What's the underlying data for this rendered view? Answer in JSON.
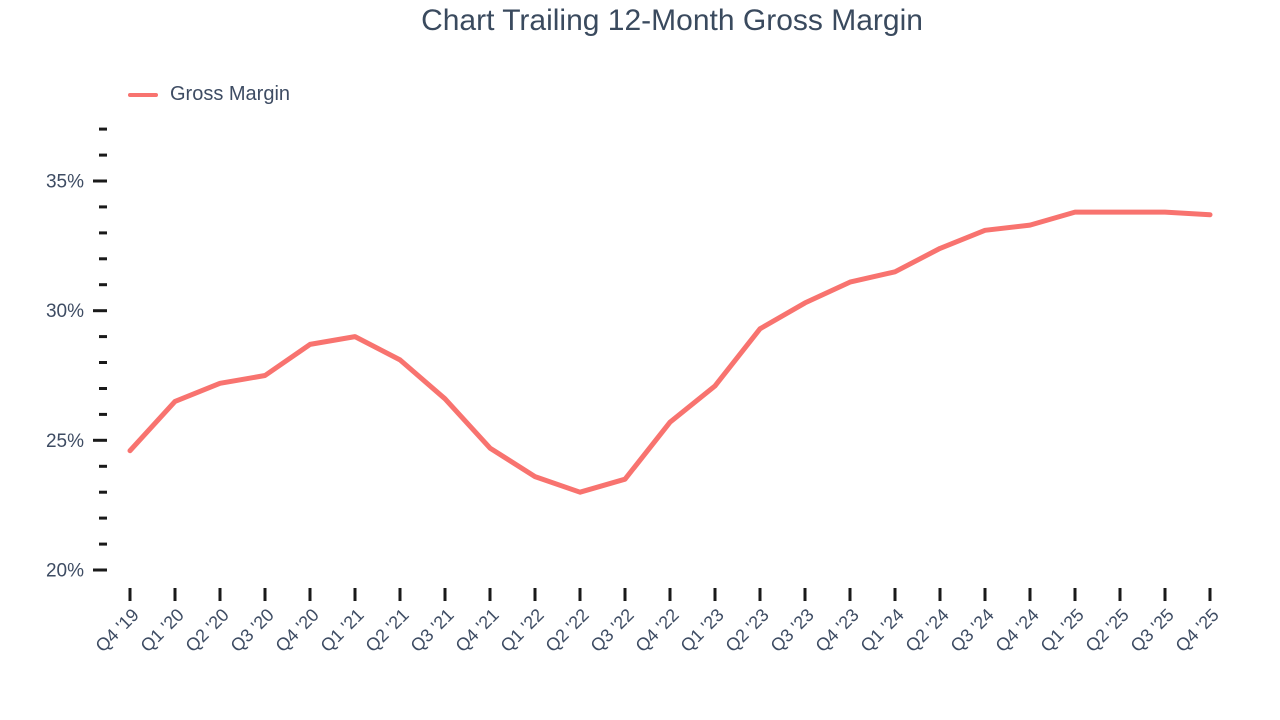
{
  "title": "Chart Trailing 12-Month Gross Margin",
  "legend": {
    "label": "Gross Margin"
  },
  "colors": {
    "line": "#F8736F",
    "title_text": "#3A4A5E",
    "axis_text": "#3E4C63",
    "tick": "#1A1A1A",
    "background": "#FFFFFF"
  },
  "chart_data": {
    "type": "line",
    "title": "Chart Trailing 12-Month Gross Margin",
    "categories": [
      "Q4 '19",
      "Q1 '20",
      "Q2 '20",
      "Q3 '20",
      "Q4 '20",
      "Q1 '21",
      "Q2 '21",
      "Q3 '21",
      "Q4 '21",
      "Q1 '22",
      "Q2 '22",
      "Q3 '22",
      "Q4 '22",
      "Q1 '23",
      "Q2 '23",
      "Q3 '23",
      "Q4 '23",
      "Q1 '24",
      "Q2 '24",
      "Q3 '24",
      "Q4 '24",
      "Q1 '25",
      "Q2 '25",
      "Q3 '25",
      "Q4 '25"
    ],
    "series": [
      {
        "name": "Gross Margin",
        "color": "#F8736F",
        "values": [
          24.6,
          26.5,
          27.2,
          27.5,
          28.7,
          29.0,
          28.1,
          26.6,
          24.7,
          23.6,
          23.0,
          23.5,
          25.7,
          27.1,
          29.3,
          30.3,
          31.1,
          31.5,
          32.4,
          33.1,
          33.3,
          33.8,
          33.8,
          33.8,
          33.7
        ]
      }
    ],
    "xlabel": "",
    "ylabel": "",
    "ylim": [
      20,
      37
    ],
    "y_minor_step": 1,
    "y_tick_values": [
      20,
      25,
      30,
      35
    ],
    "y_tick_labels": [
      "20%",
      "25%",
      "30%",
      "35%"
    ],
    "grid": false,
    "legend_position": "top-left"
  }
}
